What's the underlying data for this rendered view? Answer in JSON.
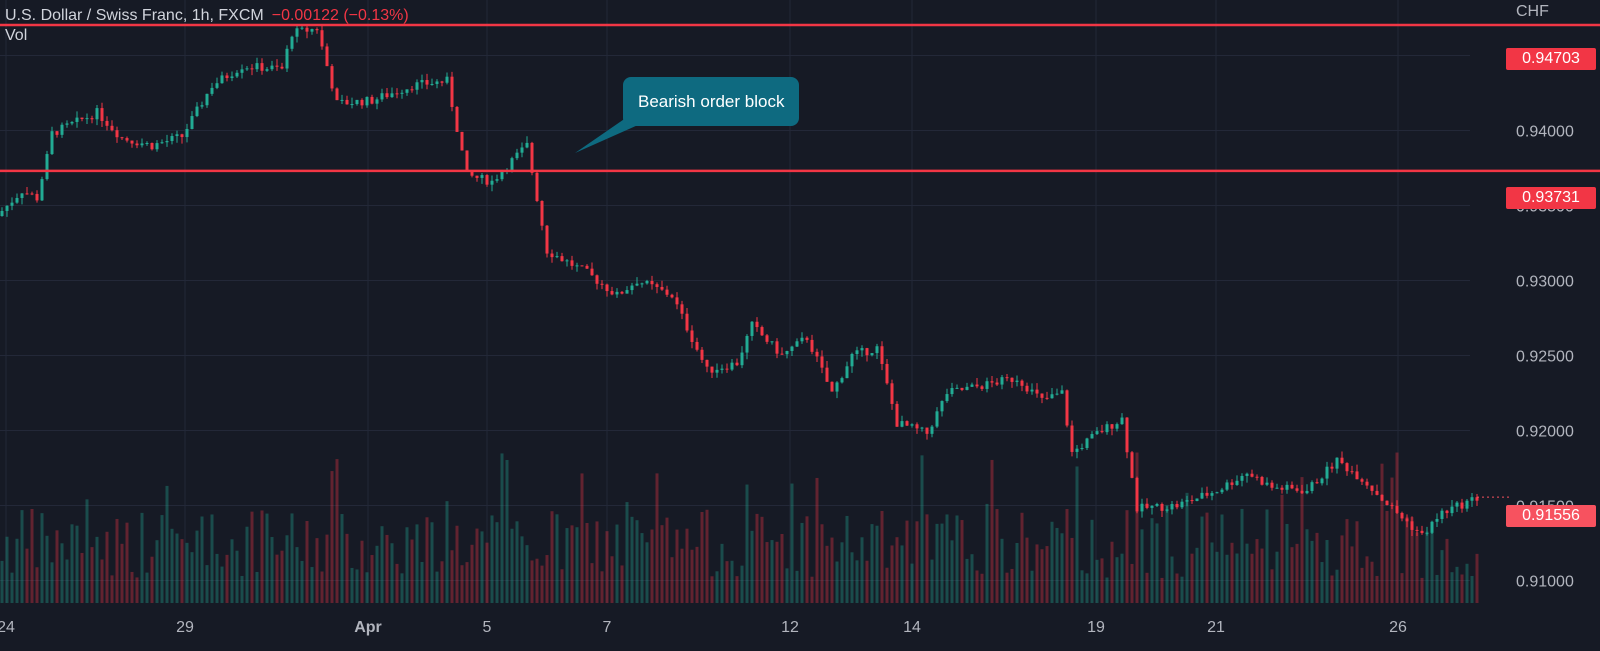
{
  "legend": {
    "symbol": "U.S. Dollar / Swiss Franc, 1h, FXCM",
    "change": "−0.00122 (−0.13%)",
    "volume_label": "Vol"
  },
  "axis": {
    "unit": "CHF",
    "y_ticks": [
      "0.94500",
      "0.94000",
      "0.93500",
      "0.93000",
      "0.92500",
      "0.92000",
      "0.91500",
      "0.91000"
    ],
    "x_ticks": [
      "24",
      "29",
      "Apr",
      "5",
      "7",
      "12",
      "14",
      "19",
      "21",
      "26"
    ]
  },
  "annotations": {
    "callout_text": "Bearish order block",
    "level_high": "0.94703",
    "level_low": "0.93731",
    "last_price": "0.91556"
  },
  "colors": {
    "background": "#161a25",
    "up": "#22ab94",
    "down": "#f23645",
    "level_line": "#f23645",
    "callout": "#0e6a80",
    "last_price": "#f7525f"
  },
  "chart_data": {
    "type": "candlestick",
    "y_range": [
      0.9085,
      0.9487
    ],
    "x_categories": [
      "24",
      "29",
      "Apr",
      "5",
      "7",
      "12",
      "14",
      "19",
      "21",
      "26"
    ],
    "levels": [
      0.94703,
      0.93731
    ],
    "last_price": 0.91556,
    "path_keypoints": [
      [
        0,
        0.9343
      ],
      [
        5,
        0.936
      ],
      [
        8,
        0.9355
      ],
      [
        10,
        0.9382
      ],
      [
        11,
        0.9398
      ],
      [
        20,
        0.9412
      ],
      [
        25,
        0.9395
      ],
      [
        31,
        0.939
      ],
      [
        37,
        0.9396
      ],
      [
        43,
        0.943
      ],
      [
        49,
        0.9443
      ],
      [
        57,
        0.9441
      ],
      [
        59,
        0.9465
      ],
      [
        64,
        0.9468
      ],
      [
        68,
        0.9418
      ],
      [
        75,
        0.942
      ],
      [
        83,
        0.943
      ],
      [
        90,
        0.9433
      ],
      [
        94,
        0.937
      ],
      [
        99,
        0.9366
      ],
      [
        103,
        0.938
      ],
      [
        106,
        0.939
      ],
      [
        110,
        0.932
      ],
      [
        118,
        0.9305
      ],
      [
        124,
        0.929
      ],
      [
        128,
        0.93
      ],
      [
        135,
        0.929
      ],
      [
        142,
        0.924
      ],
      [
        148,
        0.9245
      ],
      [
        151,
        0.927
      ],
      [
        157,
        0.925
      ],
      [
        162,
        0.9262
      ],
      [
        167,
        0.9225
      ],
      [
        171,
        0.925
      ],
      [
        176,
        0.9255
      ],
      [
        180,
        0.9205
      ],
      [
        186,
        0.9198
      ],
      [
        190,
        0.9225
      ],
      [
        197,
        0.923
      ],
      [
        204,
        0.9235
      ],
      [
        209,
        0.922
      ],
      [
        213,
        0.9225
      ],
      [
        215,
        0.9185
      ],
      [
        220,
        0.9198
      ],
      [
        225,
        0.9208
      ],
      [
        228,
        0.9148
      ],
      [
        236,
        0.915
      ],
      [
        244,
        0.916
      ],
      [
        250,
        0.9172
      ],
      [
        255,
        0.9162
      ],
      [
        262,
        0.916
      ],
      [
        268,
        0.918
      ],
      [
        273,
        0.9168
      ],
      [
        279,
        0.9148
      ],
      [
        285,
        0.913
      ],
      [
        289,
        0.9145
      ],
      [
        296,
        0.9155
      ]
    ]
  }
}
